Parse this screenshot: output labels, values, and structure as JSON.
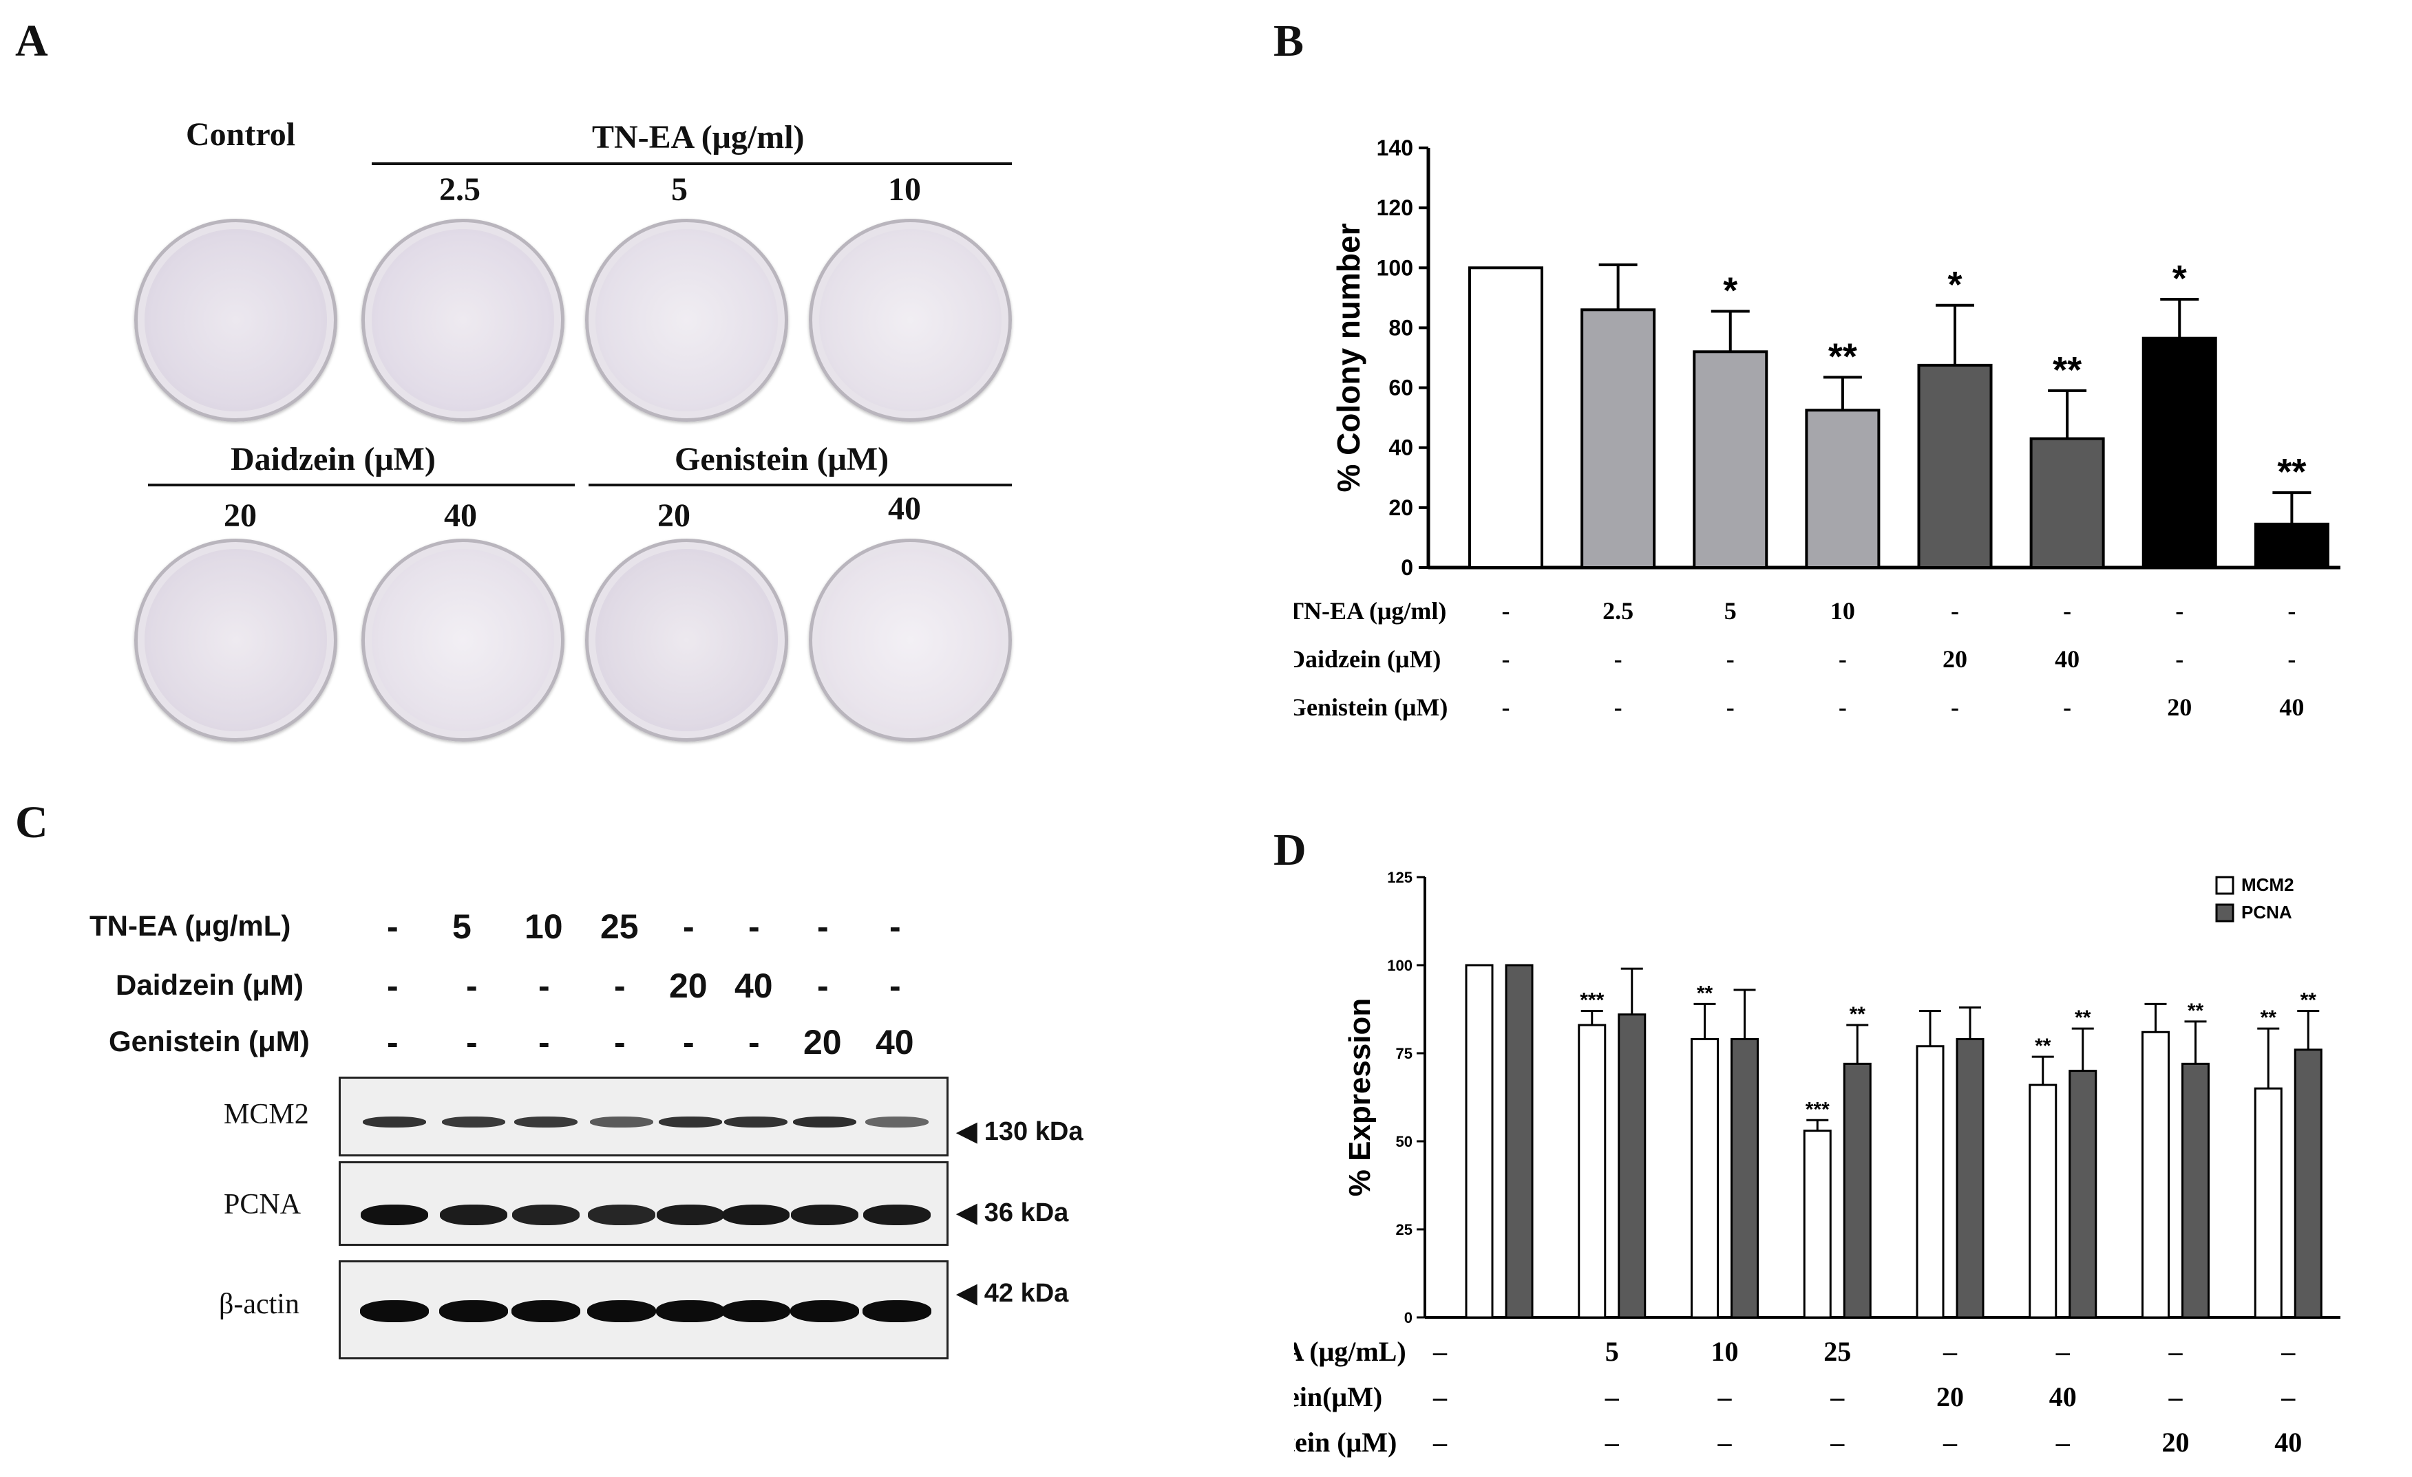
{
  "panel_letters": {
    "A": "A",
    "B": "B",
    "C": "C",
    "D": "D"
  },
  "panel_a": {
    "control_label": "Control",
    "tnea_header": "TN-EA (μg/ml)",
    "tnea_doses": [
      "2.5",
      "5",
      "10"
    ],
    "daidzein_header": "Daidzein (μM)",
    "genistein_header": "Genistein (μM)",
    "daidzein_doses": [
      "20",
      "40"
    ],
    "genistein_doses": [
      "20",
      "40"
    ]
  },
  "panel_c": {
    "rows": [
      {
        "label": "TN-EA (μg/mL)",
        "values": [
          "-",
          "5",
          "10",
          "25",
          "-",
          "-",
          "-",
          "-"
        ]
      },
      {
        "label": "Daidzein (μM)",
        "values": [
          "-",
          "-",
          "-",
          "-",
          "20",
          "40",
          "-",
          "-"
        ]
      },
      {
        "label": "Genistein (μM)",
        "values": [
          "-",
          "-",
          "-",
          "-",
          "-",
          "-",
          "20",
          "40"
        ]
      }
    ],
    "blots": [
      {
        "protein": "MCM2",
        "size": "◀ 130 kDa"
      },
      {
        "protein": "PCNA",
        "size": "◀ 36 kDa"
      },
      {
        "protein": "β-actin",
        "size": "◀ 42 kDa"
      }
    ]
  },
  "chart_data": [
    {
      "type": "bar",
      "panel": "B",
      "ylabel": "% Colony number",
      "ylim": [
        0,
        140
      ],
      "yticks": [
        0,
        20,
        40,
        60,
        80,
        100,
        120,
        140
      ],
      "values": [
        100,
        86,
        72,
        52.5,
        67.5,
        43,
        76.5,
        14.5
      ],
      "errors": [
        0,
        15,
        13.5,
        11,
        20,
        16,
        13,
        10.5
      ],
      "significance": [
        "",
        "",
        "*",
        "**",
        "*",
        "**",
        "*",
        "**"
      ],
      "bar_colors": [
        "#ffffff",
        "#a6a6ab",
        "#a6a6ab",
        "#a6a6ab",
        "#5a5a5a",
        "#5a5a5a",
        "#000000",
        "#000000"
      ],
      "treatment_rows": [
        {
          "label": "TN-EA (μg/ml)",
          "values": [
            "-",
            "2.5",
            "5",
            "10",
            "-",
            "-",
            "-",
            "-"
          ]
        },
        {
          "label": "Daidzein (μM)",
          "values": [
            "-",
            "-",
            "-",
            "-",
            "20",
            "40",
            "-",
            "-"
          ]
        },
        {
          "label": "Genistein (μM)",
          "values": [
            "-",
            "-",
            "-",
            "-",
            "-",
            "-",
            "20",
            "40"
          ]
        }
      ]
    },
    {
      "type": "bar",
      "panel": "D",
      "ylabel": "% Expression",
      "ylim": [
        0,
        125
      ],
      "yticks": [
        0,
        25,
        50,
        75,
        100,
        125
      ],
      "series": [
        {
          "name": "MCM2",
          "color": "#ffffff",
          "values": [
            100,
            83,
            79,
            53,
            77,
            66,
            81,
            65
          ],
          "errors": [
            0,
            4,
            10,
            3,
            10,
            8,
            8,
            17
          ],
          "significance": [
            "",
            "***",
            "**",
            "***",
            "",
            "**",
            "",
            "**"
          ]
        },
        {
          "name": "PCNA",
          "color": "#5a5a5a",
          "values": [
            100,
            86,
            79,
            72,
            79,
            70,
            72,
            76
          ],
          "errors": [
            0,
            13,
            14,
            11,
            9,
            12,
            12,
            11
          ],
          "significance": [
            "",
            "",
            "",
            "**",
            "",
            "**",
            "**",
            "**"
          ]
        }
      ],
      "legend_position": "top-right",
      "treatment_rows": [
        {
          "label": "TN-EA (μg/mL)",
          "values": [
            "–",
            "5",
            "10",
            "25",
            "–",
            "–",
            "–",
            "–"
          ]
        },
        {
          "label": "Daidzein(μM)",
          "values": [
            "–",
            "–",
            "–",
            "–",
            "20",
            "40",
            "–",
            "–"
          ]
        },
        {
          "label": "Genistein (μM)",
          "values": [
            "–",
            "–",
            "–",
            "–",
            "–",
            "–",
            "20",
            "40"
          ]
        }
      ]
    }
  ]
}
